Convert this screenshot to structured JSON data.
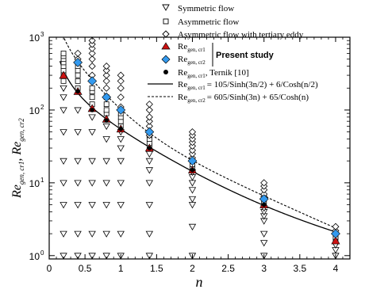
{
  "chart_data": {
    "type": "scatter",
    "xlabel": "n",
    "ylabel_parts": [
      "Re",
      "gen, cr1",
      ", Re",
      "gen, cr2"
    ],
    "xlim": [
      0,
      4.2
    ],
    "ylim": [
      0.9,
      1000
    ],
    "y_scale": "log",
    "x_ticks": [
      0,
      0.5,
      1,
      1.5,
      2,
      2.5,
      3,
      3.5,
      4
    ],
    "x_tick_labels": [
      "0",
      "0.5",
      "1",
      "1.5",
      "2",
      "2.5",
      "3",
      "3.5",
      "4"
    ],
    "y_ticks": [
      1,
      10,
      100,
      1000
    ],
    "y_tick_labels": [
      "10",
      "10",
      "10",
      "10"
    ],
    "y_tick_exponents": [
      "0",
      "1",
      "2",
      "3"
    ],
    "legend": {
      "symmetric": "Symmetric flow",
      "asymmetric": "Asymmetric flow",
      "tertiary": "Asymmetric flow with tertiary eddy",
      "cr1_label": "Re",
      "cr1_sub": "gen, cr1",
      "cr2_label": "Re",
      "cr2_sub": "gen, cr2",
      "present_study": "Present study",
      "ternik_label": "Re",
      "ternik_sub": "gen, cr1",
      "ternik_ref": ", Ternik [10]",
      "solid_label": "Re",
      "solid_sub": "gen, cr1",
      "solid_formula": "= 105/Sinh(3n/2) + 6/Cosh(n/2)",
      "dashed_label": "Re",
      "dashed_sub": "gen, cr2",
      "dashed_formula": "= 605/Sinh(3n) + 65/Cosh(n)"
    },
    "series": [
      {
        "name": "Symmetric flow",
        "marker": "triangle-down",
        "points": [
          [
            0.2,
            1
          ],
          [
            0.2,
            2
          ],
          [
            0.2,
            5
          ],
          [
            0.2,
            10
          ],
          [
            0.2,
            20
          ],
          [
            0.2,
            50
          ],
          [
            0.2,
            100
          ],
          [
            0.2,
            150
          ],
          [
            0.2,
            200
          ],
          [
            0.4,
            1
          ],
          [
            0.4,
            2
          ],
          [
            0.4,
            5
          ],
          [
            0.4,
            10
          ],
          [
            0.4,
            20
          ],
          [
            0.4,
            50
          ],
          [
            0.4,
            100
          ],
          [
            0.6,
            1
          ],
          [
            0.6,
            2
          ],
          [
            0.6,
            5
          ],
          [
            0.6,
            10
          ],
          [
            0.6,
            20
          ],
          [
            0.6,
            50
          ],
          [
            0.6,
            80
          ],
          [
            0.8,
            1
          ],
          [
            0.8,
            2
          ],
          [
            0.8,
            5
          ],
          [
            0.8,
            10
          ],
          [
            0.8,
            20
          ],
          [
            0.8,
            40
          ],
          [
            0.8,
            60
          ],
          [
            1.0,
            1
          ],
          [
            1.0,
            2
          ],
          [
            1.0,
            5
          ],
          [
            1.0,
            10
          ],
          [
            1.0,
            20
          ],
          [
            1.0,
            30
          ],
          [
            1.0,
            40
          ],
          [
            1.0,
            50
          ],
          [
            1.4,
            1
          ],
          [
            1.4,
            2
          ],
          [
            1.4,
            5
          ],
          [
            1.4,
            10
          ],
          [
            1.4,
            15
          ],
          [
            1.4,
            20
          ],
          [
            1.4,
            25
          ],
          [
            2.0,
            1
          ],
          [
            2.0,
            2.5
          ],
          [
            2.0,
            5
          ],
          [
            2.0,
            6
          ],
          [
            2.0,
            8
          ],
          [
            2.0,
            10
          ],
          [
            2.0,
            12
          ],
          [
            2.0,
            14
          ],
          [
            3.0,
            1
          ],
          [
            3.0,
            1.5
          ],
          [
            3.0,
            2
          ],
          [
            3.0,
            3
          ],
          [
            3.0,
            3.5
          ],
          [
            3.0,
            4
          ],
          [
            3.0,
            4.5
          ],
          [
            4.0,
            1
          ],
          [
            4.0,
            1.2
          ],
          [
            4.0,
            1.4
          ]
        ]
      },
      {
        "name": "Asymmetric flow",
        "marker": "square",
        "points": [
          [
            0.2,
            250
          ],
          [
            0.2,
            300
          ],
          [
            0.2,
            350
          ],
          [
            0.2,
            400
          ],
          [
            0.2,
            450
          ],
          [
            0.2,
            500
          ],
          [
            0.2,
            550
          ],
          [
            0.2,
            600
          ],
          [
            0.4,
            200
          ],
          [
            0.4,
            250
          ],
          [
            0.4,
            300
          ],
          [
            0.4,
            350
          ],
          [
            0.4,
            400
          ],
          [
            0.6,
            120
          ],
          [
            0.6,
            150
          ],
          [
            0.6,
            180
          ],
          [
            0.6,
            200
          ],
          [
            0.8,
            90
          ],
          [
            0.8,
            100
          ],
          [
            0.8,
            120
          ],
          [
            0.8,
            150
          ],
          [
            1.0,
            60
          ],
          [
            1.0,
            70
          ],
          [
            1.0,
            80
          ],
          [
            1.0,
            90
          ],
          [
            1.4,
            32
          ],
          [
            1.4,
            35
          ],
          [
            1.4,
            40
          ],
          [
            1.4,
            45
          ],
          [
            2.0,
            16
          ],
          [
            2.0,
            18
          ],
          [
            2.0,
            20
          ],
          [
            3.0,
            5
          ],
          [
            3.0,
            5.5
          ],
          [
            3.0,
            6
          ],
          [
            4.0,
            1.7
          ],
          [
            4.0,
            1.8
          ]
        ]
      },
      {
        "name": "Asymmetric flow with tertiary eddy",
        "marker": "diamond",
        "points": [
          [
            0.4,
            500
          ],
          [
            0.4,
            600
          ],
          [
            0.6,
            300
          ],
          [
            0.6,
            400
          ],
          [
            0.6,
            500
          ],
          [
            0.6,
            600
          ],
          [
            0.6,
            700
          ],
          [
            0.6,
            800
          ],
          [
            0.6,
            900
          ],
          [
            0.8,
            150
          ],
          [
            0.8,
            200
          ],
          [
            0.8,
            250
          ],
          [
            0.8,
            300
          ],
          [
            0.8,
            350
          ],
          [
            0.8,
            400
          ],
          [
            1.0,
            110
          ],
          [
            1.0,
            150
          ],
          [
            1.0,
            200
          ],
          [
            1.0,
            250
          ],
          [
            1.0,
            300
          ],
          [
            1.4,
            45
          ],
          [
            1.4,
            50
          ],
          [
            1.4,
            60
          ],
          [
            1.4,
            70
          ],
          [
            1.4,
            80
          ],
          [
            1.4,
            100
          ],
          [
            1.4,
            120
          ],
          [
            2.0,
            22
          ],
          [
            2.0,
            25
          ],
          [
            2.0,
            28
          ],
          [
            2.0,
            32
          ],
          [
            2.0,
            36
          ],
          [
            2.0,
            40
          ],
          [
            2.0,
            45
          ],
          [
            2.0,
            50
          ],
          [
            3.0,
            6.5
          ],
          [
            3.0,
            7
          ],
          [
            3.0,
            8
          ],
          [
            3.0,
            9
          ],
          [
            3.0,
            10
          ],
          [
            4.0,
            2.2
          ],
          [
            4.0,
            2.5
          ]
        ]
      },
      {
        "name": "Re_gen,cr1 (present study)",
        "marker": "triangle-up-filled",
        "color": "#cc1111",
        "points": [
          [
            0.2,
            300
          ],
          [
            0.4,
            180
          ],
          [
            0.6,
            105
          ],
          [
            0.8,
            75
          ],
          [
            1.0,
            55
          ],
          [
            1.4,
            30
          ],
          [
            2.0,
            15
          ],
          [
            3.0,
            5
          ],
          [
            4.0,
            1.6
          ]
        ]
      },
      {
        "name": "Re_gen,cr2 (present study)",
        "marker": "diamond-filled",
        "color": "#3399ee",
        "points": [
          [
            0.4,
            450
          ],
          [
            0.6,
            250
          ],
          [
            0.8,
            150
          ],
          [
            1.0,
            100
          ],
          [
            1.4,
            50
          ],
          [
            2.0,
            20
          ],
          [
            3.0,
            6
          ],
          [
            4.0,
            2
          ]
        ]
      },
      {
        "name": "Ternik [10]",
        "marker": "circle-filled",
        "color": "#000000",
        "points": [
          [
            0.4,
            180
          ],
          [
            0.6,
            100
          ],
          [
            0.8,
            72
          ],
          [
            1.0,
            55
          ],
          [
            1.4,
            30
          ],
          [
            2.0,
            15
          ],
          [
            3.0,
            5
          ]
        ]
      }
    ],
    "curves": [
      {
        "name": "Re_gen,cr1 = 105/Sinh(3n/2) + 6/Cosh(n/2)",
        "style": "solid",
        "a": 105,
        "b": 1.5,
        "c": 6,
        "d": 0.5
      },
      {
        "name": "Re_gen,cr2 = 605/Sinh(3n) + 65/Cosh(n)",
        "style": "dashed",
        "a": 605,
        "b": 3,
        "c": 65,
        "d": 1
      }
    ]
  }
}
